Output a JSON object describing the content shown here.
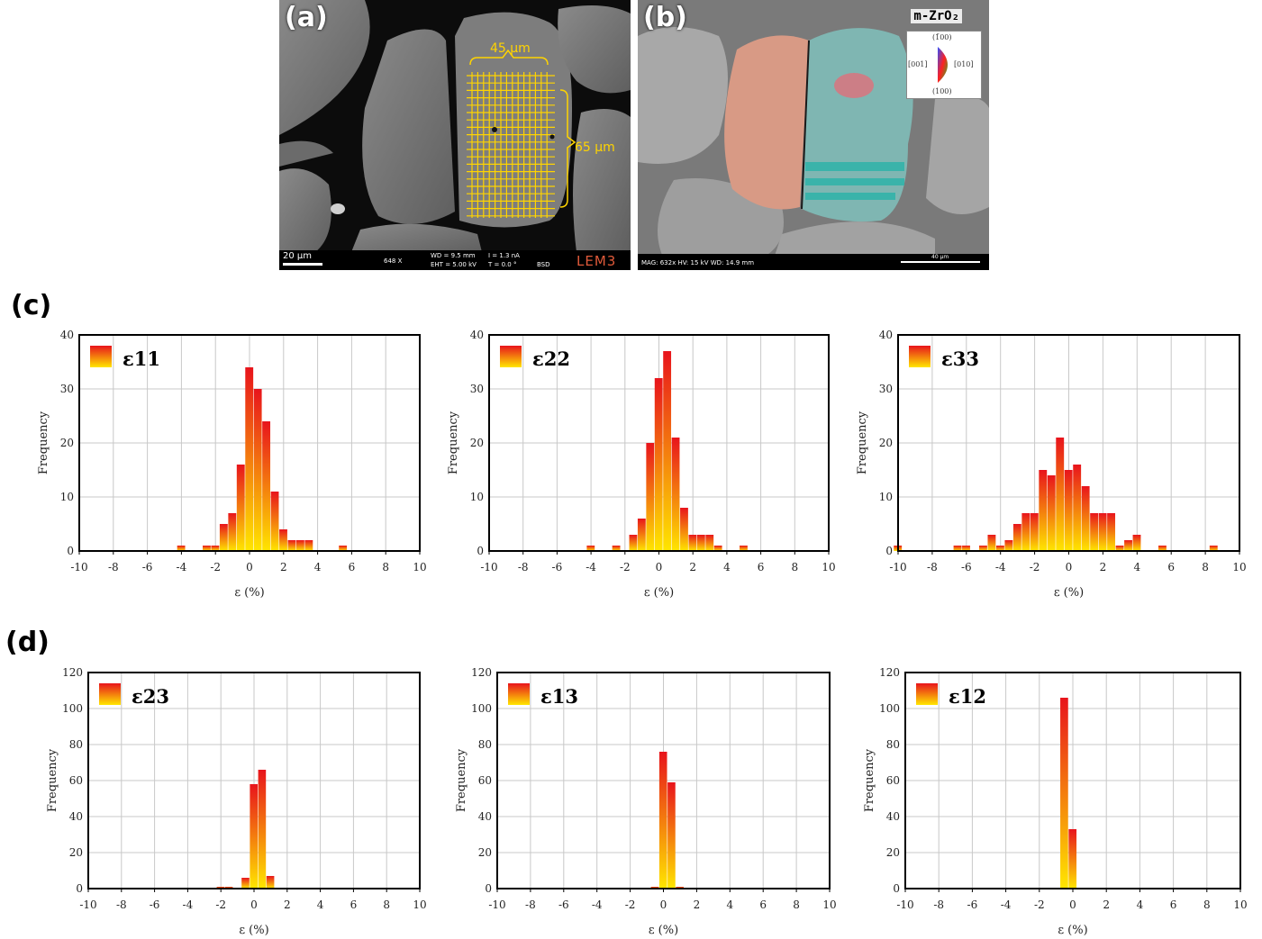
{
  "panel_labels": {
    "c": "(c)",
    "d": "(d)"
  },
  "micrograph_a": {
    "letter": "(a)",
    "width_label": "45 µm",
    "height_label": "65 µm",
    "scale_bar": "20 µm",
    "magnification": "648 X",
    "wd": "WD = 9.5 mm",
    "current": "I = 1.3 nA",
    "eht": "EHT = 5.00 kV",
    "tilt": "T = 0.0 °",
    "detector": "BSD",
    "logo": "LEM3"
  },
  "micrograph_b": {
    "letter": "(b)",
    "phase": "m-ZrO₂",
    "ipf_top": "(1̄00)",
    "ipf_left": "[001]",
    "ipf_right": "[010]",
    "ipf_bottom": "(100)",
    "footer": "MAG: 632x   HV: 15 kV   WD: 14.9 mm",
    "scale_bar": "40 µm"
  },
  "colors": {
    "bar_top": "#e8141c",
    "bar_bottom": "#ffe600",
    "grid": "#c8c8c8",
    "highlight_yellow": "#ffd400"
  },
  "chart_data": [
    {
      "type": "bar",
      "legend": "ε11",
      "xlabel": "ε (%)",
      "ylabel": "Frequency",
      "xlim": [
        -10,
        10
      ],
      "ylim": [
        0,
        40
      ],
      "xticks": [
        -10,
        -8,
        -6,
        -4,
        -2,
        0,
        2,
        4,
        6,
        8,
        10
      ],
      "yticks": [
        0,
        10,
        20,
        30,
        40
      ],
      "bin_width": 0.5,
      "bins": [
        [
          -4,
          1
        ],
        [
          -2.5,
          1
        ],
        [
          -2,
          1
        ],
        [
          -1.5,
          5
        ],
        [
          -1,
          7
        ],
        [
          -0.5,
          16
        ],
        [
          0,
          34
        ],
        [
          0.5,
          30
        ],
        [
          1,
          24
        ],
        [
          1.5,
          11
        ],
        [
          2,
          4
        ],
        [
          2.5,
          2
        ],
        [
          3,
          2
        ],
        [
          3.5,
          2
        ],
        [
          5.5,
          1
        ]
      ]
    },
    {
      "type": "bar",
      "legend": "ε22",
      "xlabel": "ε (%)",
      "ylabel": "Frequency",
      "xlim": [
        -10,
        10
      ],
      "ylim": [
        0,
        40
      ],
      "xticks": [
        -10,
        -8,
        -6,
        -4,
        -2,
        0,
        2,
        4,
        6,
        8,
        10
      ],
      "yticks": [
        0,
        10,
        20,
        30,
        40
      ],
      "bin_width": 0.5,
      "bins": [
        [
          -4,
          1
        ],
        [
          -2.5,
          1
        ],
        [
          -1.5,
          3
        ],
        [
          -1,
          6
        ],
        [
          -0.5,
          20
        ],
        [
          0,
          32
        ],
        [
          0.5,
          37
        ],
        [
          1,
          21
        ],
        [
          1.5,
          8
        ],
        [
          2,
          3
        ],
        [
          2.5,
          3
        ],
        [
          3,
          3
        ],
        [
          3.5,
          1
        ],
        [
          5,
          1
        ]
      ]
    },
    {
      "type": "bar",
      "legend": "ε33",
      "xlabel": "ε (%)",
      "ylabel": "Frequency",
      "xlim": [
        -10,
        10
      ],
      "ylim": [
        0,
        40
      ],
      "xticks": [
        -10,
        -8,
        -6,
        -4,
        -2,
        0,
        2,
        4,
        6,
        8,
        10
      ],
      "yticks": [
        0,
        10,
        20,
        30,
        40
      ],
      "bin_width": 0.5,
      "bins": [
        [
          -10,
          1
        ],
        [
          -6.5,
          1
        ],
        [
          -6,
          1
        ],
        [
          -5,
          1
        ],
        [
          -4.5,
          3
        ],
        [
          -4,
          1
        ],
        [
          -3.5,
          2
        ],
        [
          -3,
          5
        ],
        [
          -2.5,
          7
        ],
        [
          -2,
          7
        ],
        [
          -1.5,
          15
        ],
        [
          -1,
          14
        ],
        [
          -0.5,
          21
        ],
        [
          0,
          15
        ],
        [
          0.5,
          16
        ],
        [
          1,
          12
        ],
        [
          1.5,
          7
        ],
        [
          2,
          7
        ],
        [
          2.5,
          7
        ],
        [
          3,
          1
        ],
        [
          3.5,
          2
        ],
        [
          4,
          3
        ],
        [
          5.5,
          1
        ],
        [
          8.5,
          1
        ]
      ]
    },
    {
      "type": "bar",
      "legend": "ε23",
      "xlabel": "ε (%)",
      "ylabel": "Frequency",
      "xlim": [
        -10,
        10
      ],
      "ylim": [
        0,
        120
      ],
      "xticks": [
        -10,
        -8,
        -6,
        -4,
        -2,
        0,
        2,
        4,
        6,
        8,
        10
      ],
      "yticks": [
        0,
        20,
        40,
        60,
        80,
        100,
        120
      ],
      "bin_width": 0.5,
      "bins": [
        [
          -2,
          1
        ],
        [
          -1.5,
          1
        ],
        [
          -0.5,
          6
        ],
        [
          0,
          58
        ],
        [
          0.5,
          66
        ],
        [
          1,
          7
        ]
      ]
    },
    {
      "type": "bar",
      "legend": "ε13",
      "xlabel": "ε (%)",
      "ylabel": "Frequency",
      "xlim": [
        -10,
        10
      ],
      "ylim": [
        0,
        120
      ],
      "xticks": [
        -10,
        -8,
        -6,
        -4,
        -2,
        0,
        2,
        4,
        6,
        8,
        10
      ],
      "yticks": [
        0,
        20,
        40,
        60,
        80,
        100,
        120
      ],
      "bin_width": 0.5,
      "bins": [
        [
          -0.5,
          1
        ],
        [
          0,
          76
        ],
        [
          0.5,
          59
        ],
        [
          1,
          1
        ]
      ]
    },
    {
      "type": "bar",
      "legend": "ε12",
      "xlabel": "ε (%)",
      "ylabel": "Frequency",
      "xlim": [
        -10,
        10
      ],
      "ylim": [
        0,
        120
      ],
      "xticks": [
        -10,
        -8,
        -6,
        -4,
        -2,
        0,
        2,
        4,
        6,
        8,
        10
      ],
      "yticks": [
        0,
        20,
        40,
        60,
        80,
        100,
        120
      ],
      "bin_width": 0.5,
      "bins": [
        [
          -0.5,
          106
        ],
        [
          0,
          33
        ]
      ]
    }
  ]
}
